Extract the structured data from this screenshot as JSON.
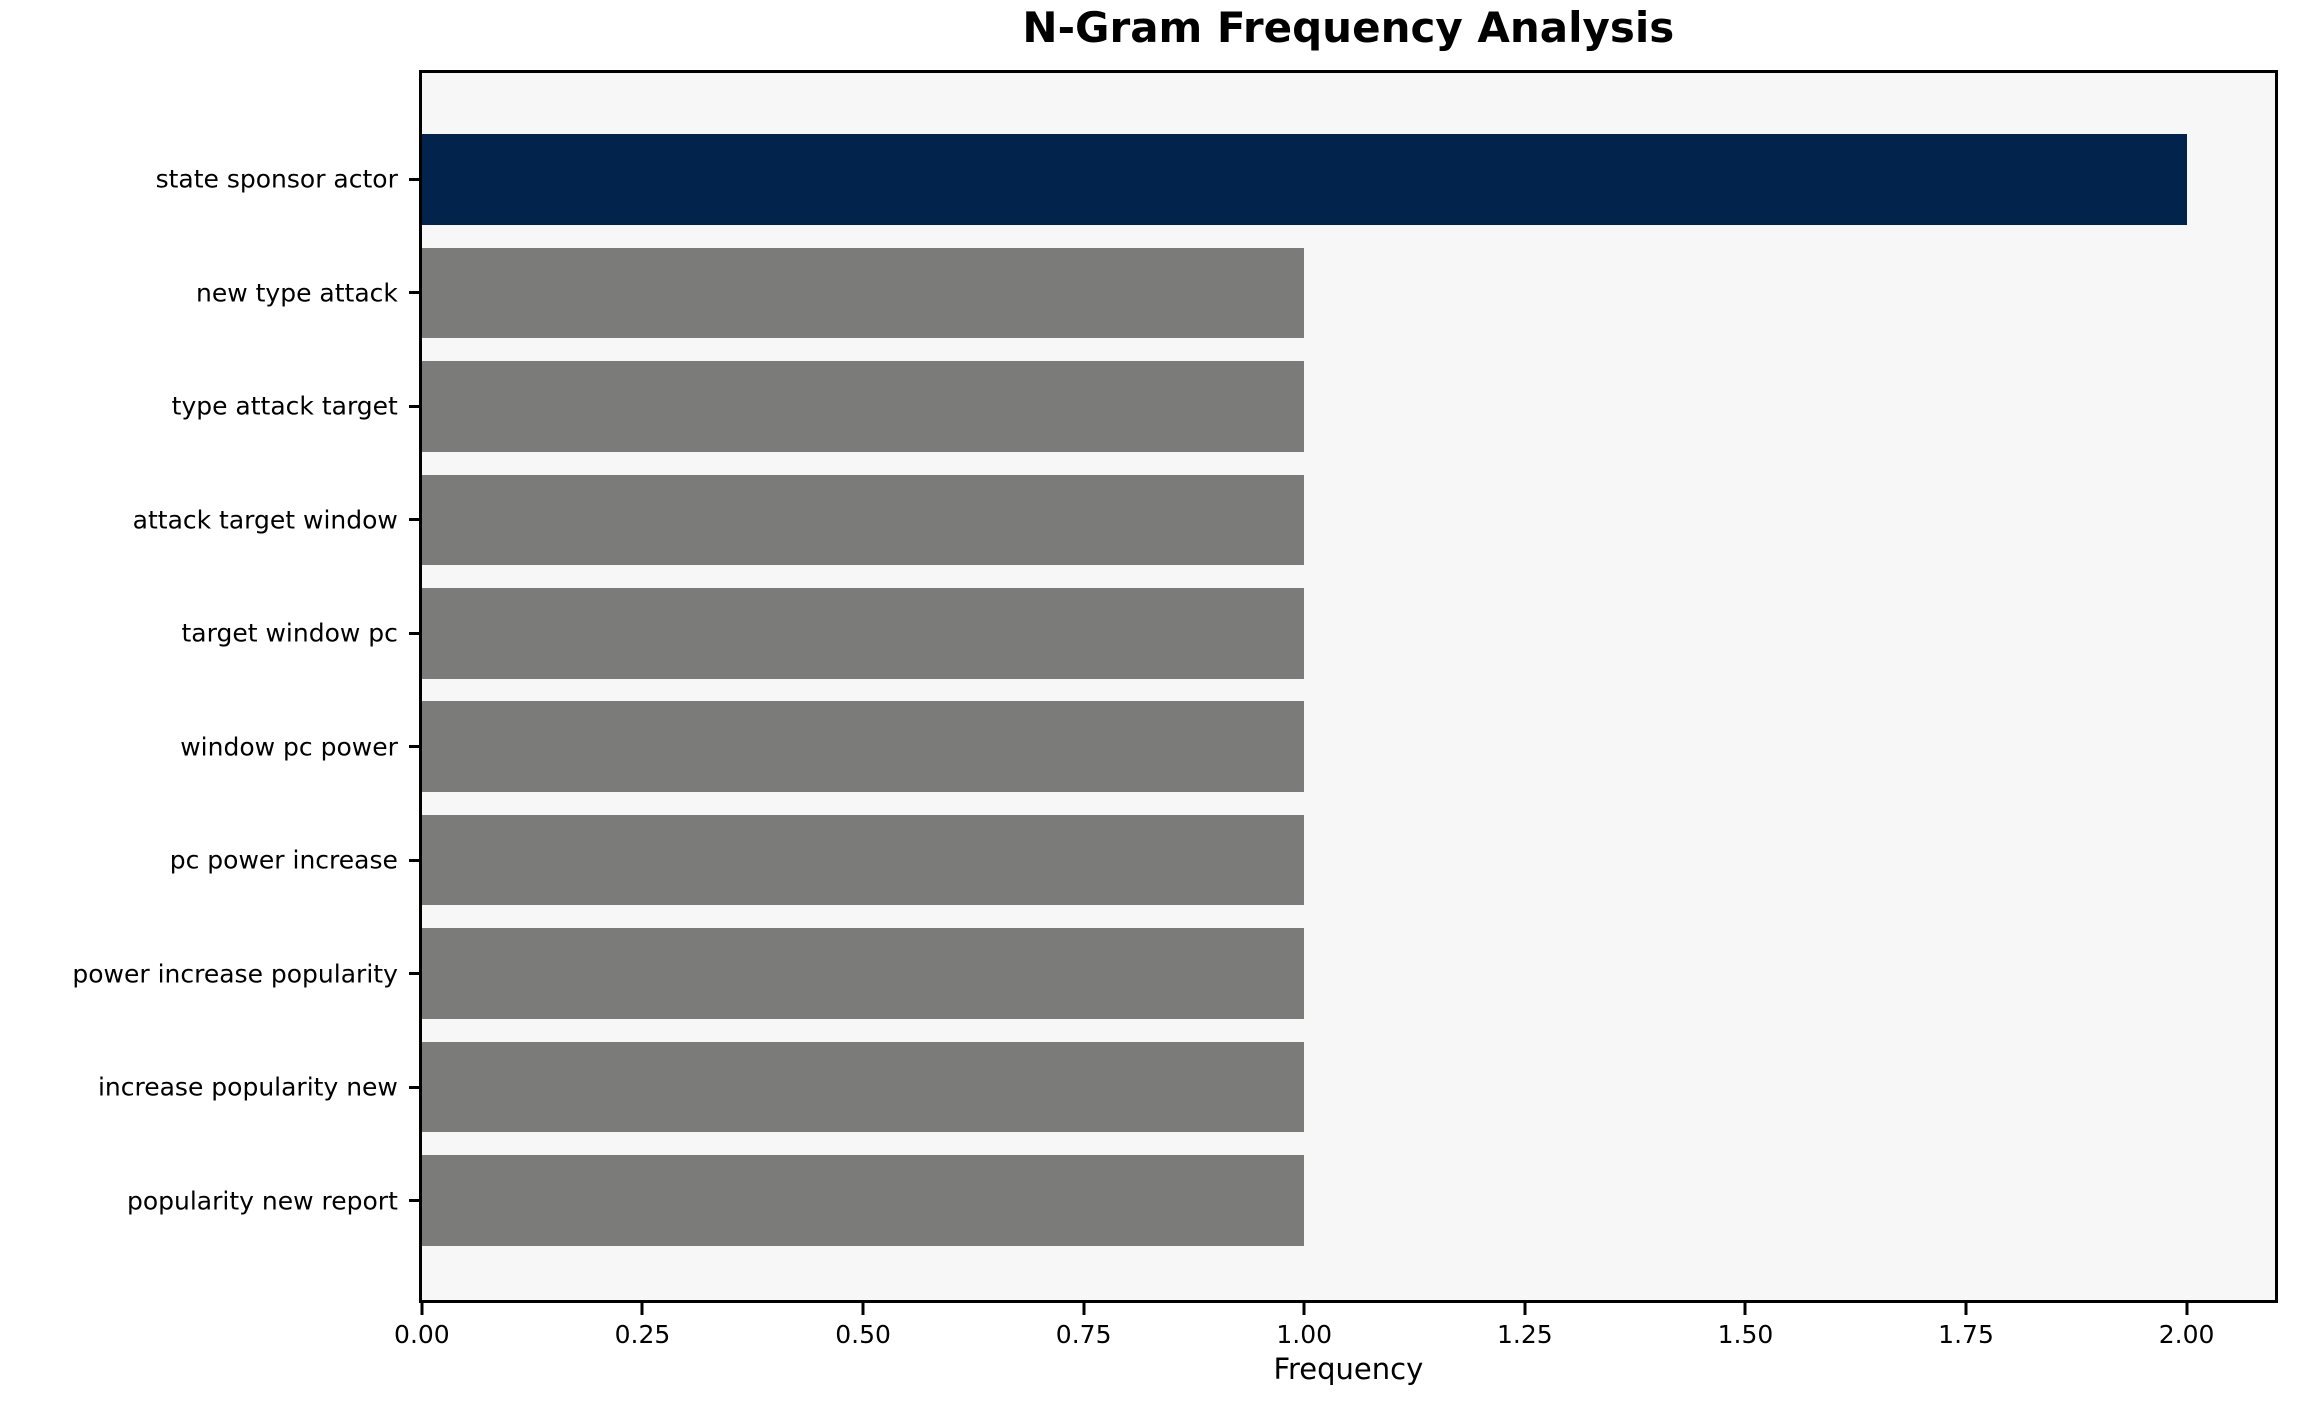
{
  "chart_data": {
    "type": "bar",
    "orientation": "horizontal",
    "title": "N-Gram Frequency Analysis",
    "xlabel": "Frequency",
    "ylabel": "",
    "categories": [
      "state sponsor actor",
      "new type attack",
      "type attack target",
      "attack target window",
      "target window pc",
      "window pc power",
      "pc power increase",
      "power increase popularity",
      "increase popularity new",
      "popularity new report"
    ],
    "values": [
      2.0,
      1.0,
      1.0,
      1.0,
      1.0,
      1.0,
      1.0,
      1.0,
      1.0,
      1.0
    ],
    "xlim": [
      0,
      2.1
    ],
    "x_ticks": [
      0.0,
      0.25,
      0.5,
      0.75,
      1.0,
      1.25,
      1.5,
      1.75,
      2.0
    ],
    "x_tick_labels": [
      "0.00",
      "0.25",
      "0.50",
      "0.75",
      "1.00",
      "1.25",
      "1.50",
      "1.75",
      "2.00"
    ],
    "colors": {
      "highlight_bar": "#02234c",
      "default_bar": "#7b7b79",
      "plot_background": "#f7f7f7",
      "figure_background": "#ffffff",
      "spine": "#000000",
      "text": "#000000"
    },
    "grid": false,
    "legend": "none"
  }
}
